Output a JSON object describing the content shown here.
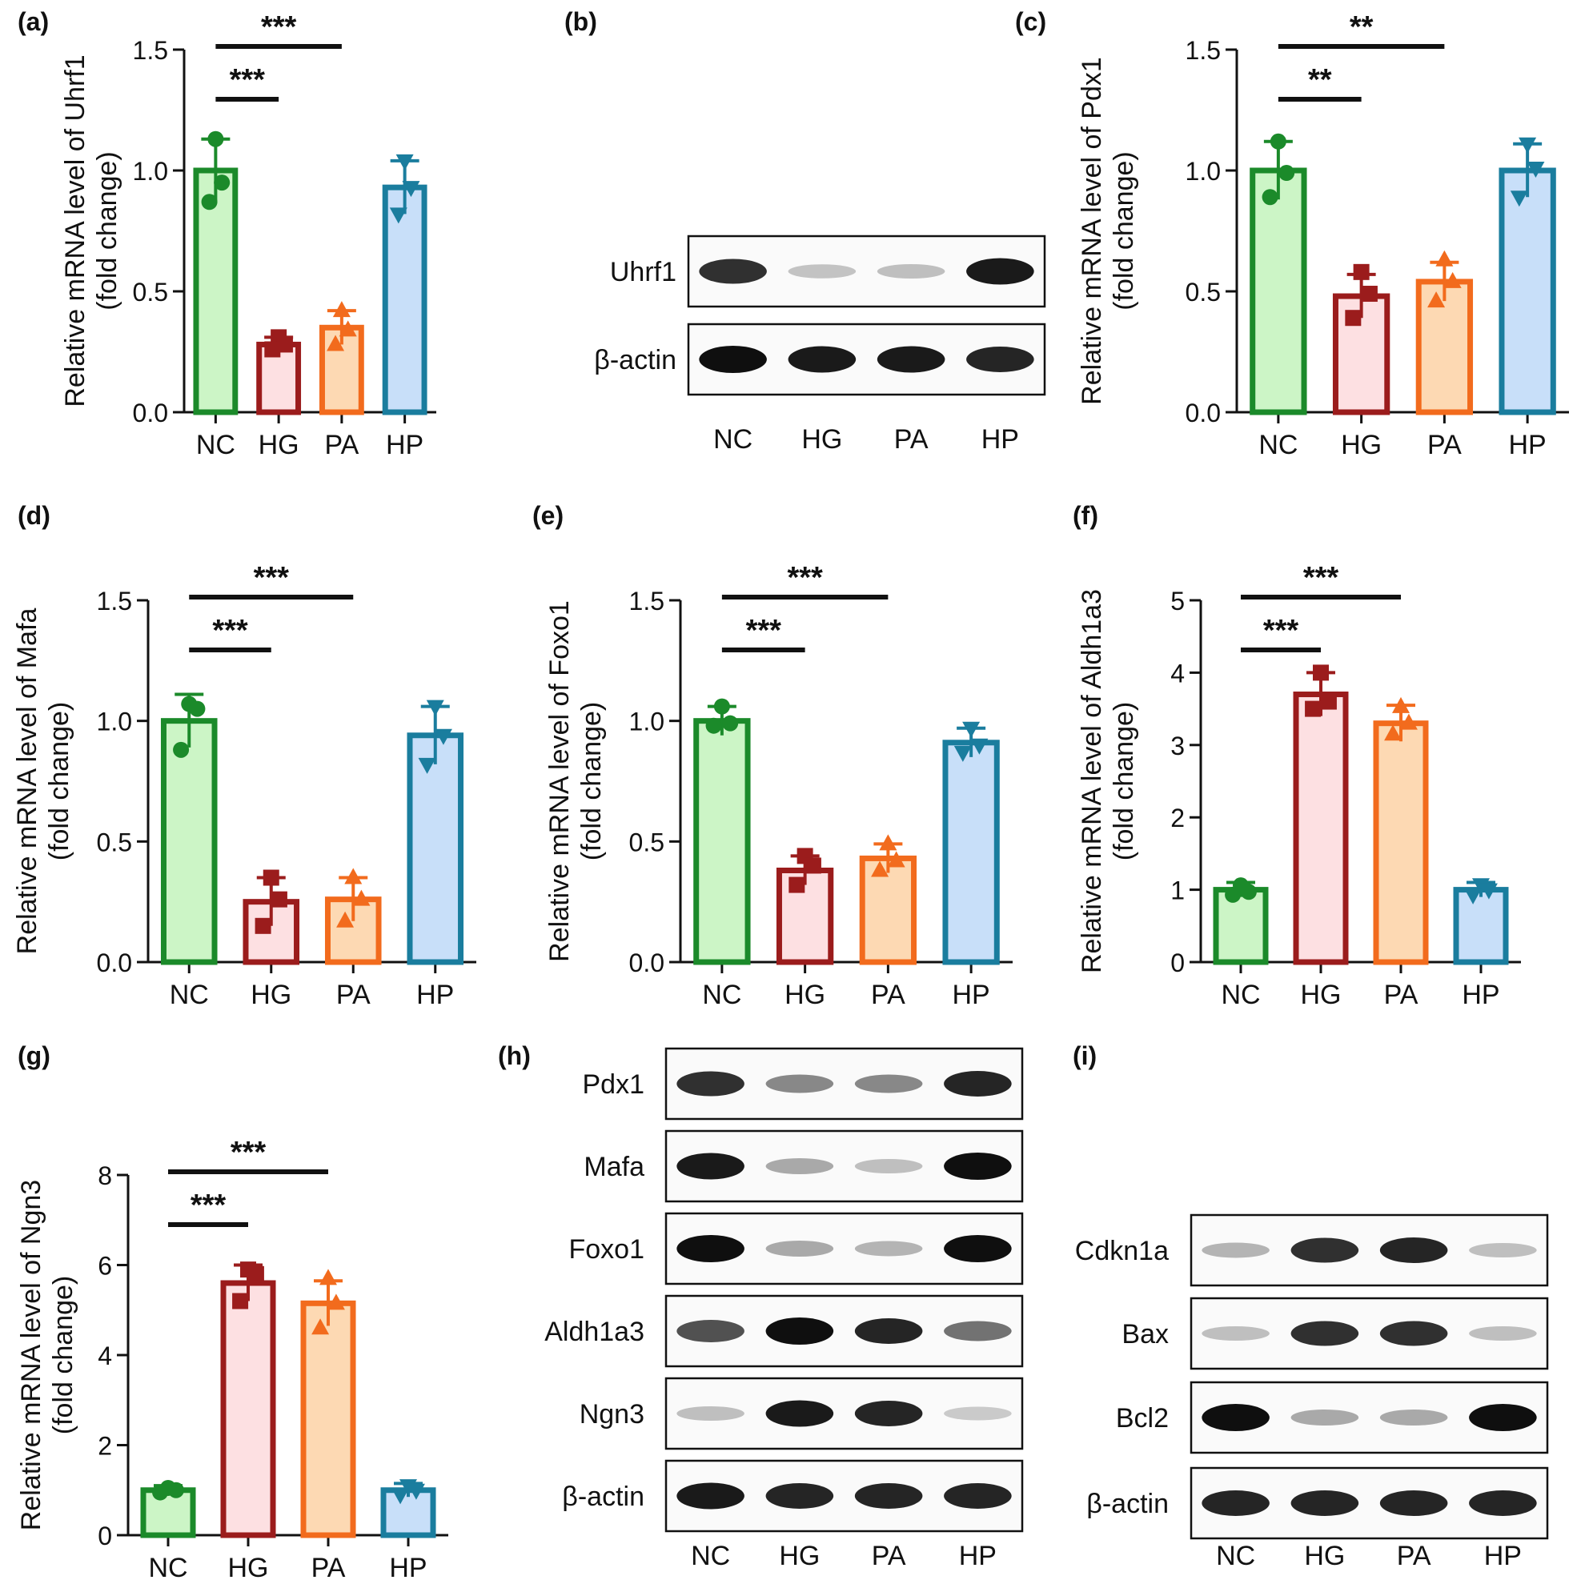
{
  "colors": {
    "NC": {
      "stroke": "#1b8a2a",
      "fill": "#ccf5c6"
    },
    "HG": {
      "stroke": "#9b1c1c",
      "fill": "#fde0e2"
    },
    "PA": {
      "stroke": "#f26b1d",
      "fill": "#fdd9b3"
    },
    "HP": {
      "stroke": "#1a7d9e",
      "fill": "#c8dff9"
    }
  },
  "lanes": [
    "NC",
    "HG",
    "PA",
    "HP"
  ],
  "chart_data": [
    {
      "panel": "(a)",
      "type": "bar",
      "categories": [
        "NC",
        "HG",
        "PA",
        "HP"
      ],
      "values": [
        1.0,
        0.28,
        0.35,
        0.93
      ],
      "errors": [
        0.13,
        0.03,
        0.07,
        0.11
      ],
      "points": [
        [
          1.13,
          0.95,
          0.87
        ],
        [
          0.31,
          0.28,
          0.26
        ],
        [
          0.42,
          0.34,
          0.28
        ],
        [
          1.04,
          0.93,
          0.82
        ]
      ],
      "ylabel": "Relative mRNA level of Uhrf1",
      "ylabel2": "(fold change)",
      "ylim": [
        0,
        1.5
      ],
      "yticks": [
        "0.0",
        "0.5",
        "1.0",
        "1.5"
      ],
      "significance": [
        {
          "from": "NC",
          "to": "HG",
          "label": "***",
          "level": 1
        },
        {
          "from": "NC",
          "to": "PA",
          "label": "***",
          "level": 2
        }
      ]
    },
    {
      "panel": "(c)",
      "type": "bar",
      "categories": [
        "NC",
        "HG",
        "PA",
        "HP"
      ],
      "values": [
        1.0,
        0.48,
        0.54,
        1.0
      ],
      "errors": [
        0.12,
        0.09,
        0.08,
        0.11
      ],
      "points": [
        [
          1.12,
          0.99,
          0.89
        ],
        [
          0.58,
          0.49,
          0.39
        ],
        [
          0.63,
          0.54,
          0.46
        ],
        [
          1.11,
          1.01,
          0.89
        ]
      ],
      "ylabel": "Relative mRNA level of Pdx1",
      "ylabel2": "(fold change)",
      "ylim": [
        0,
        1.5
      ],
      "yticks": [
        "0.0",
        "0.5",
        "1.0",
        "1.5"
      ],
      "significance": [
        {
          "from": "NC",
          "to": "HG",
          "label": "**",
          "level": 1
        },
        {
          "from": "NC",
          "to": "PA",
          "label": "**",
          "level": 2
        }
      ]
    },
    {
      "panel": "(d)",
      "type": "bar",
      "categories": [
        "NC",
        "HG",
        "PA",
        "HP"
      ],
      "values": [
        1.0,
        0.25,
        0.26,
        0.94
      ],
      "errors": [
        0.11,
        0.1,
        0.09,
        0.12
      ],
      "points": [
        [
          1.07,
          1.05,
          0.88
        ],
        [
          0.35,
          0.26,
          0.15
        ],
        [
          0.35,
          0.26,
          0.17
        ],
        [
          1.06,
          0.94,
          0.82
        ]
      ],
      "ylabel": "Relative mRNA level of Mafa",
      "ylabel2": "(fold change)",
      "ylim": [
        0,
        1.5
      ],
      "yticks": [
        "0.0",
        "0.5",
        "1.0",
        "1.5"
      ],
      "significance": [
        {
          "from": "NC",
          "to": "HG",
          "label": "***",
          "level": 1
        },
        {
          "from": "NC",
          "to": "PA",
          "label": "***",
          "level": 2
        }
      ]
    },
    {
      "panel": "(e)",
      "type": "bar",
      "categories": [
        "NC",
        "HG",
        "PA",
        "HP"
      ],
      "values": [
        1.0,
        0.38,
        0.43,
        0.91
      ],
      "errors": [
        0.06,
        0.06,
        0.06,
        0.06
      ],
      "points": [
        [
          1.06,
          0.99,
          0.98
        ],
        [
          0.44,
          0.4,
          0.32
        ],
        [
          0.49,
          0.42,
          0.38
        ],
        [
          0.97,
          0.9,
          0.87
        ]
      ],
      "ylabel": "Relative mRNA level of Foxo1",
      "ylabel2": "(fold change)",
      "ylim": [
        0,
        1.5
      ],
      "yticks": [
        "0.0",
        "0.5",
        "1.0",
        "1.5"
      ],
      "significance": [
        {
          "from": "NC",
          "to": "HG",
          "label": "***",
          "level": 1
        },
        {
          "from": "NC",
          "to": "PA",
          "label": "***",
          "level": 2
        }
      ]
    },
    {
      "panel": "(f)",
      "type": "bar",
      "categories": [
        "NC",
        "HG",
        "PA",
        "HP"
      ],
      "values": [
        1.0,
        3.7,
        3.3,
        1.0
      ],
      "errors": [
        0.1,
        0.3,
        0.25,
        0.1
      ],
      "points": [
        [
          1.06,
          0.97,
          0.93
        ],
        [
          4.0,
          3.6,
          3.5
        ],
        [
          3.53,
          3.3,
          3.15
        ],
        [
          1.07,
          1.0,
          0.93
        ]
      ],
      "ylabel": "Relative mRNA level of Aldh1a3",
      "ylabel2": "(fold change)",
      "ylim": [
        0,
        5
      ],
      "yticks": [
        "0",
        "1",
        "2",
        "3",
        "4",
        "5"
      ],
      "significance": [
        {
          "from": "NC",
          "to": "HG",
          "label": "***",
          "level": 1
        },
        {
          "from": "NC",
          "to": "PA",
          "label": "***",
          "level": 2
        }
      ]
    },
    {
      "panel": "(g)",
      "type": "bar",
      "categories": [
        "NC",
        "HG",
        "PA",
        "HP"
      ],
      "values": [
        1.0,
        5.6,
        5.15,
        1.0
      ],
      "errors": [
        0.1,
        0.4,
        0.5,
        0.15
      ],
      "points": [
        [
          1.05,
          1.0,
          0.95
        ],
        [
          5.9,
          5.8,
          5.2
        ],
        [
          5.7,
          5.15,
          4.6
        ],
        [
          1.1,
          1.0,
          0.9
        ]
      ],
      "ylabel": "Relative mRNA level of Ngn3",
      "ylabel2": "(fold change)",
      "ylim": [
        0,
        8
      ],
      "yticks": [
        "0",
        "2",
        "4",
        "6",
        "8"
      ],
      "significance": [
        {
          "from": "NC",
          "to": "HG",
          "label": "***",
          "level": 1
        },
        {
          "from": "NC",
          "to": "PA",
          "label": "***",
          "level": 2
        }
      ]
    }
  ],
  "blots": [
    {
      "panel": "(b)",
      "rows": [
        {
          "label": "Uhrf1",
          "intensity": [
            0.85,
            0.18,
            0.2,
            0.95
          ]
        },
        {
          "label": "β-actin",
          "intensity": [
            1.0,
            0.95,
            0.95,
            0.9
          ]
        }
      ]
    },
    {
      "panel": "(h)",
      "rows": [
        {
          "label": "Pdx1",
          "intensity": [
            0.85,
            0.45,
            0.45,
            0.9
          ]
        },
        {
          "label": "Mafa",
          "intensity": [
            0.95,
            0.3,
            0.2,
            1.0
          ]
        },
        {
          "label": "Foxo1",
          "intensity": [
            1.0,
            0.3,
            0.25,
            1.0
          ]
        },
        {
          "label": "Aldh1a3",
          "intensity": [
            0.7,
            1.0,
            0.9,
            0.55
          ]
        },
        {
          "label": "Ngn3",
          "intensity": [
            0.2,
            0.95,
            0.9,
            0.15
          ]
        },
        {
          "label": "β-actin",
          "intensity": [
            0.95,
            0.9,
            0.9,
            0.9
          ]
        }
      ]
    },
    {
      "panel": "(i)",
      "rows": [
        {
          "label": "Cdkn1a",
          "intensity": [
            0.25,
            0.85,
            0.9,
            0.2
          ]
        },
        {
          "label": "Bax",
          "intensity": [
            0.2,
            0.85,
            0.85,
            0.2
          ]
        },
        {
          "label": "Bcl2",
          "intensity": [
            1.0,
            0.3,
            0.3,
            1.0
          ]
        },
        {
          "label": "β-actin",
          "intensity": [
            0.9,
            0.9,
            0.9,
            0.9
          ]
        }
      ]
    }
  ]
}
